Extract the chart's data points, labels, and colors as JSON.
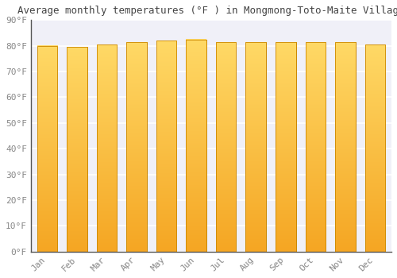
{
  "title": "Average monthly temperatures (°F ) in Mongmong-Toto-Maite Village",
  "months": [
    "Jan",
    "Feb",
    "Mar",
    "Apr",
    "May",
    "Jun",
    "Jul",
    "Aug",
    "Sep",
    "Oct",
    "Nov",
    "Dec"
  ],
  "values": [
    80,
    79.5,
    80.5,
    81.5,
    82,
    82.5,
    81.5,
    81.5,
    81.5,
    81.5,
    81.5,
    80.5
  ],
  "ylim": [
    0,
    90
  ],
  "yticks": [
    0,
    10,
    20,
    30,
    40,
    50,
    60,
    70,
    80,
    90
  ],
  "ytick_labels": [
    "0°F",
    "10°F",
    "20°F",
    "30°F",
    "40°F",
    "50°F",
    "60°F",
    "70°F",
    "80°F",
    "90°F"
  ],
  "bar_color_bottom": "#F5A623",
  "bar_color_top": "#FFD966",
  "bar_edge_color": "#CC8800",
  "background_color": "#ffffff",
  "plot_bg_color": "#f0f0f8",
  "grid_color": "#ffffff",
  "title_fontsize": 9,
  "tick_fontsize": 8,
  "font_family": "monospace"
}
